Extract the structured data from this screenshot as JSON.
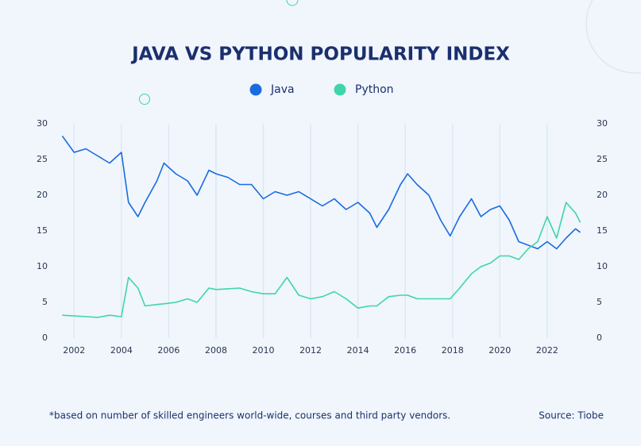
{
  "chart_data": {
    "type": "line",
    "title": "JAVA VS PYTHON POPULARITY INDEX",
    "footnote": "*based on number of skilled engineers world-wide, courses and third party vendors.",
    "source": "Source: Tiobe",
    "x": [
      2001.5,
      2002,
      2002.5,
      2003,
      2003.5,
      2004,
      2004.3,
      2004.7,
      2005,
      2005.5,
      2005.8,
      2006.3,
      2006.8,
      2007.2,
      2007.7,
      2008,
      2008.5,
      2009,
      2009.5,
      2010,
      2010.5,
      2011,
      2011.5,
      2012,
      2012.5,
      2013,
      2013.5,
      2014,
      2014.5,
      2014.8,
      2015.3,
      2015.8,
      2016.1,
      2016.5,
      2017,
      2017.5,
      2017.9,
      2018.3,
      2018.8,
      2019.2,
      2019.6,
      2020,
      2020.4,
      2020.8,
      2021.2,
      2021.6,
      2022,
      2022.4,
      2022.8,
      2023.2,
      2023.4
    ],
    "series": [
      {
        "name": "Java",
        "color": "#1a6be0",
        "values": [
          28.3,
          26,
          26.5,
          25.5,
          24.5,
          26,
          19,
          17,
          19,
          22,
          24.5,
          23,
          22,
          20,
          23.5,
          23,
          22.5,
          21.5,
          21.5,
          19.5,
          20.5,
          20,
          20.5,
          19.5,
          18.5,
          19.5,
          18,
          19,
          17.5,
          15.5,
          18,
          21.5,
          23,
          21.5,
          20,
          16.5,
          14.3,
          17,
          19.5,
          17,
          18,
          18.5,
          16.5,
          13.5,
          13,
          12.5,
          13.5,
          12.5,
          14,
          15.3,
          14.8
        ]
      },
      {
        "name": "Python",
        "color": "#3ed6a8",
        "values": [
          3.2,
          3.1,
          3,
          2.9,
          3.2,
          3,
          8.5,
          7,
          4.5,
          4.7,
          4.8,
          5,
          5.5,
          5,
          7,
          6.8,
          6.9,
          7,
          6.5,
          6.2,
          6.2,
          8.5,
          6,
          5.5,
          5.8,
          6.5,
          5.5,
          4.2,
          4.5,
          4.5,
          5.8,
          6,
          6,
          5.5,
          5.5,
          5.5,
          5.5,
          7,
          9,
          10,
          10.5,
          11.5,
          11.5,
          11,
          12.5,
          13.5,
          17,
          14,
          19,
          17.5,
          16.2
        ]
      }
    ],
    "xlim": [
      2001.05,
      2023.55
    ],
    "xticks": [
      2002,
      2004,
      2006,
      2008,
      2010,
      2012,
      2014,
      2016,
      2018,
      2020,
      2022
    ],
    "ylim": [
      0,
      30
    ],
    "yticks": [
      0,
      5,
      10,
      15,
      20,
      25,
      30
    ],
    "y2lim": [
      0,
      30
    ],
    "y2ticks": [
      0,
      5,
      10,
      15,
      20,
      25,
      30
    ],
    "grid": true
  }
}
